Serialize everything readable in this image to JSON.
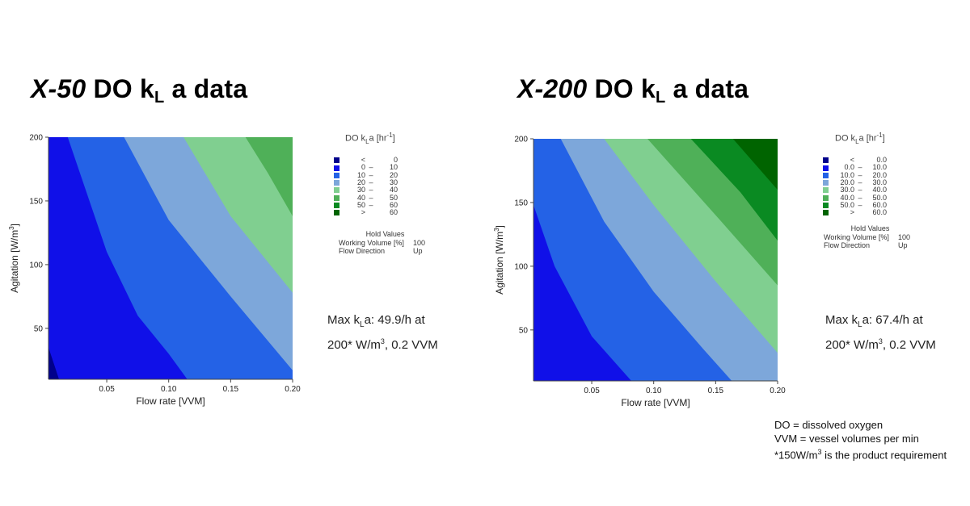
{
  "panels": [
    {
      "title_model": "X-50",
      "title_pre": "DO k",
      "title_sub": "L",
      "title_post": " a data",
      "legend_title_pre": "DO k",
      "legend_title_sub": "L",
      "legend_title_post": "a [hr",
      "legend_title_sup": "-1",
      "legend_title_end": "]",
      "legend_entries": [
        {
          "lo": "<",
          "dash": "",
          "hi": "0",
          "color": "#00008b"
        },
        {
          "lo": "0",
          "dash": "–",
          "hi": "10",
          "color": "#1010e8"
        },
        {
          "lo": "10",
          "dash": "–",
          "hi": "20",
          "color": "#2462e6"
        },
        {
          "lo": "20",
          "dash": "–",
          "hi": "30",
          "color": "#7da7da"
        },
        {
          "lo": "30",
          "dash": "–",
          "hi": "40",
          "color": "#80cf90"
        },
        {
          "lo": "40",
          "dash": "–",
          "hi": "50",
          "color": "#4fb058"
        },
        {
          "lo": "50",
          "dash": "–",
          "hi": "60",
          "color": "#0a8a22"
        },
        {
          "lo": ">",
          "dash": "",
          "hi": "60",
          "color": "#006400"
        }
      ],
      "hold_title": "Hold Values",
      "hold_rows": [
        {
          "key": "Working Volume [%]",
          "value": "100"
        },
        {
          "key": "Flow Direction",
          "value": "Up"
        }
      ],
      "max_pre": "Max k",
      "max_sub": "L",
      "max_post": "a: 49.9/h at",
      "max_line2_pre": "200* W/m",
      "max_line2_sup": "3",
      "max_line2_post": ", 0.2 VVM"
    },
    {
      "title_model": "X-200",
      "title_pre": "DO k",
      "title_sub": "L",
      "title_post": " a data",
      "legend_title_pre": "DO k",
      "legend_title_sub": "L",
      "legend_title_post": "a [hr",
      "legend_title_sup": "-1",
      "legend_title_end": "]",
      "legend_entries": [
        {
          "lo": "<",
          "dash": "",
          "hi": "0.0",
          "color": "#00008b"
        },
        {
          "lo": "0.0",
          "dash": "–",
          "hi": "10.0",
          "color": "#1010e8"
        },
        {
          "lo": "10.0",
          "dash": "–",
          "hi": "20.0",
          "color": "#2462e6"
        },
        {
          "lo": "20.0",
          "dash": "–",
          "hi": "30.0",
          "color": "#7da7da"
        },
        {
          "lo": "30.0",
          "dash": "–",
          "hi": "40.0",
          "color": "#80cf90"
        },
        {
          "lo": "40.0",
          "dash": "–",
          "hi": "50.0",
          "color": "#4fb058"
        },
        {
          "lo": "50.0",
          "dash": "–",
          "hi": "60.0",
          "color": "#0a8a22"
        },
        {
          "lo": ">",
          "dash": "",
          "hi": "60.0",
          "color": "#006400"
        }
      ],
      "hold_title": "Hold Values",
      "hold_rows": [
        {
          "key": "Working Volume [%]",
          "value": "100"
        },
        {
          "key": "Flow Direction",
          "value": "Up"
        }
      ],
      "max_pre": "Max k",
      "max_sub": "L",
      "max_post": "a: 67.4/h at",
      "max_line2_pre": "200* W/m",
      "max_line2_sup": "3",
      "max_line2_post": ", 0.2 VVM"
    }
  ],
  "notes": {
    "line1": "DO = dissolved oxygen",
    "line2": "VVM = vessel volumes per min",
    "line3_pre": "*150W/m",
    "line3_sup": "3",
    "line3_post": " is the product requirement"
  },
  "chart_data": [
    {
      "type": "heatmap",
      "subtype": "filled-contour",
      "xlabel": "Flow rate [VVM]",
      "ylabel_pre": "Agitation [W/m",
      "ylabel_sup": "3",
      "ylabel_post": "]",
      "xlim": [
        0.003,
        0.2
      ],
      "ylim": [
        10,
        200
      ],
      "x_ticks": [
        0.05,
        0.1,
        0.15,
        0.2
      ],
      "x_tick_labels": [
        "0.05",
        "0.10",
        "0.15",
        "0.20"
      ],
      "y_ticks": [
        50,
        100,
        150,
        200
      ],
      "y_tick_labels": [
        "50",
        "100",
        "150",
        "200"
      ],
      "levels": [
        0,
        10,
        20,
        30,
        40,
        50,
        60
      ],
      "level_colors": [
        "#00008b",
        "#1010e8",
        "#2462e6",
        "#7da7da",
        "#80cf90",
        "#4fb058",
        "#0a8a22",
        "#006400"
      ],
      "boundaries": [
        {
          "level": 0,
          "points": [
            [
              0.003,
              35
            ],
            [
              0.0115,
              10
            ]
          ]
        },
        {
          "level": 10,
          "points": [
            [
              0.0185,
              200
            ],
            [
              0.05,
              110
            ],
            [
              0.075,
              60
            ],
            [
              0.1,
              30
            ],
            [
              0.115,
              10
            ]
          ]
        },
        {
          "level": 20,
          "points": [
            [
              0.064,
              200
            ],
            [
              0.1,
              135
            ],
            [
              0.15,
              75
            ],
            [
              0.2,
              17
            ]
          ]
        },
        {
          "level": 30,
          "points": [
            [
              0.112,
              200
            ],
            [
              0.15,
              138
            ],
            [
              0.2,
              78
            ]
          ]
        },
        {
          "level": 40,
          "points": [
            [
              0.162,
              200
            ],
            [
              0.18,
              172
            ],
            [
              0.2,
              138
            ]
          ]
        }
      ],
      "max_value": 49.9
    },
    {
      "type": "heatmap",
      "subtype": "filled-contour",
      "xlabel": "Flow rate [VVM]",
      "ylabel_pre": "Agitation [W/m",
      "ylabel_sup": "3",
      "ylabel_post": "]",
      "xlim": [
        0.003,
        0.2
      ],
      "ylim": [
        10,
        200
      ],
      "x_ticks": [
        0.05,
        0.1,
        0.15,
        0.2
      ],
      "x_tick_labels": [
        "0.05",
        "0.10",
        "0.15",
        "0.20"
      ],
      "y_ticks": [
        50,
        100,
        150,
        200
      ],
      "y_tick_labels": [
        "50",
        "100",
        "150",
        "200"
      ],
      "levels": [
        0,
        10,
        20,
        30,
        40,
        50,
        60
      ],
      "level_colors": [
        "#00008b",
        "#1010e8",
        "#2462e6",
        "#7da7da",
        "#80cf90",
        "#4fb058",
        "#0a8a22",
        "#006400"
      ],
      "boundaries": [
        {
          "level": 10,
          "points": [
            [
              0.003,
              148
            ],
            [
              0.02,
              100
            ],
            [
              0.05,
              45
            ],
            [
              0.082,
              10
            ]
          ]
        },
        {
          "level": 20,
          "points": [
            [
              0.025,
              200
            ],
            [
              0.06,
              135
            ],
            [
              0.1,
              80
            ],
            [
              0.14,
              35
            ],
            [
              0.163,
              10
            ]
          ]
        },
        {
          "level": 30,
          "points": [
            [
              0.06,
              200
            ],
            [
              0.1,
              148
            ],
            [
              0.15,
              88
            ],
            [
              0.2,
              32
            ]
          ]
        },
        {
          "level": 40,
          "points": [
            [
              0.095,
              200
            ],
            [
              0.15,
              140
            ],
            [
              0.2,
              85
            ]
          ]
        },
        {
          "level": 50,
          "points": [
            [
              0.13,
              200
            ],
            [
              0.17,
              158
            ],
            [
              0.2,
              120
            ]
          ]
        },
        {
          "level": 60,
          "points": [
            [
              0.164,
              200
            ],
            [
              0.2,
              160
            ]
          ]
        }
      ],
      "max_value": 67.4
    }
  ]
}
